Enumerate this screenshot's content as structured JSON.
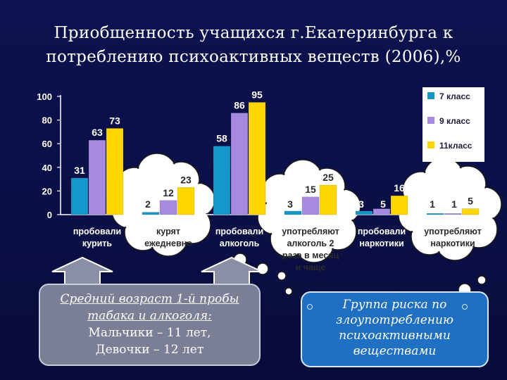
{
  "title_line1": "Приобщенность учащихся г.Екатеринбурга к",
  "title_line2": "потреблению психоактивных веществ (2006),%",
  "colors": {
    "s7": "#1597c9",
    "s9": "#a58ae0",
    "s11": "#ffd700",
    "label": "#ffffff",
    "cloud_text": "#2a2a2a"
  },
  "chart_data": {
    "type": "bar",
    "categories": [
      [
        "пробовали",
        "курить"
      ],
      [
        "курят",
        "ежедневно"
      ],
      [
        "пробовали",
        "алкоголь"
      ],
      [
        "употребляют",
        "алкоголь 2",
        "раза в месяц",
        "и чаще"
      ],
      [
        "пробовали",
        "наркотики"
      ],
      [
        "употребляют",
        "наркотики"
      ]
    ],
    "series": [
      {
        "name": "7 класс",
        "values": [
          31,
          2,
          58,
          3,
          3,
          1
        ]
      },
      {
        "name": "9 класс",
        "values": [
          63,
          12,
          86,
          15,
          5,
          1
        ]
      },
      {
        "name": "11класс",
        "values": [
          73,
          23,
          95,
          25,
          16,
          5
        ]
      }
    ],
    "y_ticks": [
      "0",
      "20",
      "40",
      "60",
      "80",
      "100"
    ],
    "ylim": [
      0,
      100
    ],
    "legend_position": "top-right",
    "clouds_on_categories": [
      1,
      3,
      5
    ]
  },
  "left_box": {
    "line1": "Средний возраст 1-й пробы",
    "line2": "табака и алкоголя:",
    "line3": "Мальчики – 11 лет,",
    "line4": "Девочки – 12 лет"
  },
  "right_box": {
    "line1": "Группа риска по",
    "line2": "злоупотреблению",
    "line3": "психоактивными",
    "line4": "веществами"
  }
}
